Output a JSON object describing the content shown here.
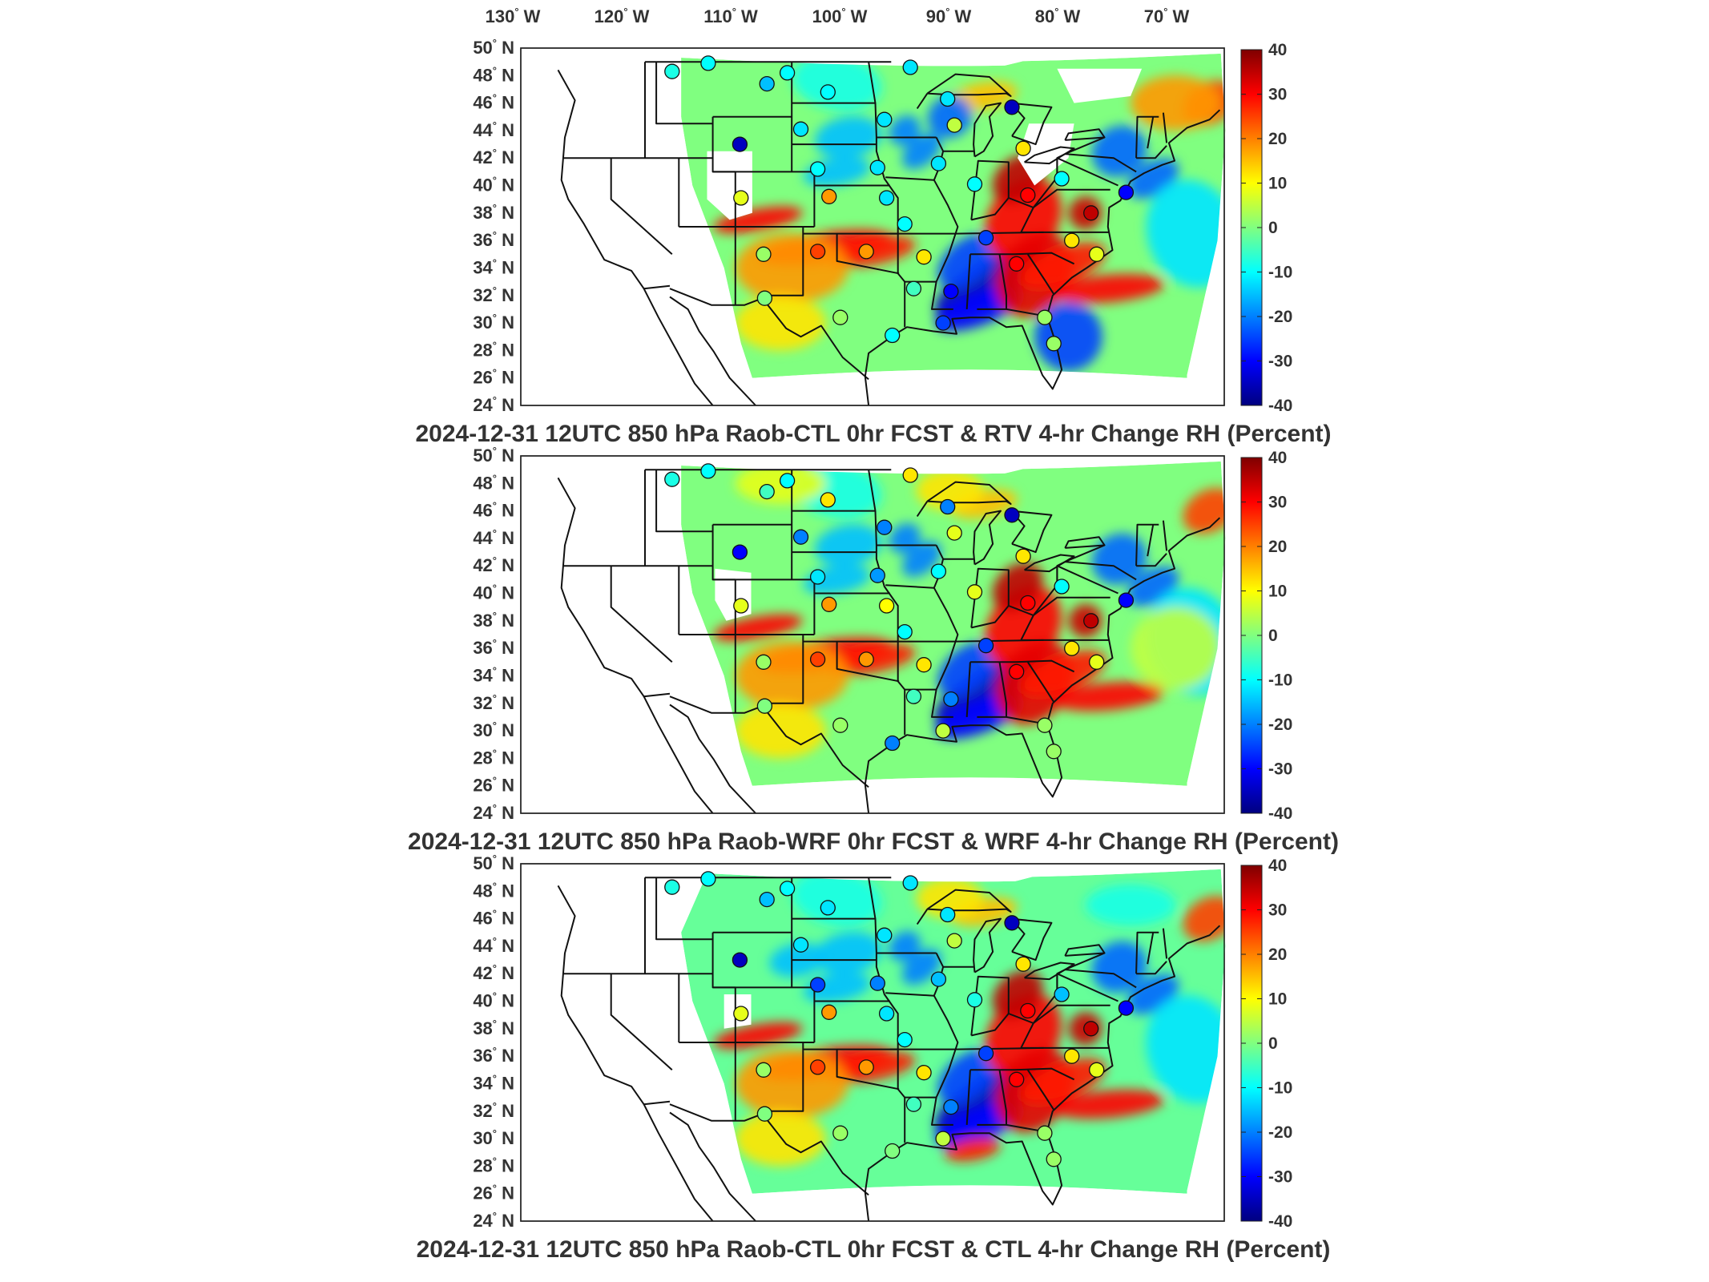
{
  "figure": {
    "lon_ticks": [
      "130",
      "120",
      "110",
      "100",
      "90",
      "80",
      "70"
    ],
    "lon_hemisphere": "W",
    "lat_ticks": [
      "50",
      "48",
      "46",
      "44",
      "42",
      "40",
      "38",
      "36",
      "34",
      "32",
      "30",
      "28",
      "26",
      "24"
    ],
    "lat_hemisphere": "N",
    "colorbar_ticks": [
      "40",
      "30",
      "20",
      "10",
      "0",
      "-10",
      "-20",
      "-30",
      "-40"
    ],
    "colormap": [
      "#00007f",
      "#0000ff",
      "#0080ff",
      "#00ffff",
      "#80ff80",
      "#ffff00",
      "#ff8000",
      "#ff0000",
      "#7f0000"
    ],
    "panels": [
      {
        "title": "2024-12-31 12UTC 850 hPa Raob-CTL 0hr FCST & RTV 4-hr Change RH (Percent)",
        "variant": 0
      },
      {
        "title": "2024-12-31 12UTC 850 hPa Raob-WRF 0hr FCST & WRF 4-hr Change RH (Percent)",
        "variant": 1
      },
      {
        "title": "2024-12-31 12UTC 850 hPa Raob-CTL 0hr FCST & CTL 4-hr Change RH (Percent)",
        "variant": 2
      }
    ],
    "raob_stations": [
      {
        "lon": -114.6,
        "lat": 48.3,
        "values": [
          -8,
          -8,
          -8
        ]
      },
      {
        "lon": -111.4,
        "lat": 48.9,
        "values": [
          -10,
          -10,
          -10
        ]
      },
      {
        "lon": -104.4,
        "lat": 48.2,
        "values": [
          -10,
          -10,
          -10
        ]
      },
      {
        "lon": -106.2,
        "lat": 47.4,
        "values": [
          -15,
          -5,
          -15
        ]
      },
      {
        "lon": -100.8,
        "lat": 46.8,
        "values": [
          -10,
          12,
          -12
        ]
      },
      {
        "lon": -93.5,
        "lat": 48.6,
        "values": [
          -12,
          12,
          -12
        ]
      },
      {
        "lon": -90.2,
        "lat": 46.3,
        "values": [
          -12,
          -20,
          -12
        ]
      },
      {
        "lon": -84.5,
        "lat": 45.7,
        "values": [
          -35,
          -35,
          -35
        ]
      },
      {
        "lon": -108.6,
        "lat": 43.0,
        "values": [
          -35,
          -30,
          -35
        ]
      },
      {
        "lon": -103.2,
        "lat": 44.1,
        "values": [
          -12,
          -20,
          -12
        ]
      },
      {
        "lon": -95.8,
        "lat": 44.8,
        "values": [
          -12,
          -20,
          -12
        ]
      },
      {
        "lon": -89.6,
        "lat": 44.4,
        "values": [
          5,
          8,
          5
        ]
      },
      {
        "lon": -83.5,
        "lat": 42.7,
        "values": [
          12,
          12,
          12
        ]
      },
      {
        "lon": -101.7,
        "lat": 41.2,
        "values": [
          -10,
          -12,
          -25
        ]
      },
      {
        "lon": -96.4,
        "lat": 41.3,
        "values": [
          -12,
          -18,
          -20
        ]
      },
      {
        "lon": -91.0,
        "lat": 41.6,
        "values": [
          -12,
          -10,
          -15
        ]
      },
      {
        "lon": -87.8,
        "lat": 40.1,
        "values": [
          -10,
          8,
          -8
        ]
      },
      {
        "lon": -83.1,
        "lat": 39.3,
        "values": [
          30,
          30,
          30
        ]
      },
      {
        "lon": -80.1,
        "lat": 40.5,
        "values": [
          -10,
          -10,
          -15
        ]
      },
      {
        "lon": -77.5,
        "lat": 38.0,
        "values": [
          35,
          35,
          35
        ]
      },
      {
        "lon": -108.5,
        "lat": 39.1,
        "values": [
          8,
          8,
          8
        ]
      },
      {
        "lon": -100.7,
        "lat": 39.2,
        "values": [
          18,
          18,
          18
        ]
      },
      {
        "lon": -95.6,
        "lat": 39.1,
        "values": [
          -12,
          10,
          -12
        ]
      },
      {
        "lon": -94.0,
        "lat": 37.2,
        "values": [
          -10,
          -10,
          -10
        ]
      },
      {
        "lon": -106.5,
        "lat": 35.0,
        "values": [
          2,
          2,
          2
        ]
      },
      {
        "lon": -101.7,
        "lat": 35.2,
        "values": [
          25,
          25,
          25
        ]
      },
      {
        "lon": -97.4,
        "lat": 35.2,
        "values": [
          18,
          18,
          18
        ]
      },
      {
        "lon": -92.3,
        "lat": 34.8,
        "values": [
          12,
          12,
          12
        ]
      },
      {
        "lon": -86.8,
        "lat": 36.2,
        "values": [
          -25,
          -25,
          -25
        ]
      },
      {
        "lon": -84.1,
        "lat": 34.3,
        "values": [
          30,
          30,
          30
        ]
      },
      {
        "lon": -79.2,
        "lat": 36.0,
        "values": [
          12,
          12,
          12
        ]
      },
      {
        "lon": -77.0,
        "lat": 35.0,
        "values": [
          8,
          8,
          8
        ]
      },
      {
        "lon": -89.9,
        "lat": 32.3,
        "values": [
          -30,
          -20,
          -20
        ]
      },
      {
        "lon": -90.6,
        "lat": 30.0,
        "values": [
          -25,
          5,
          5
        ]
      },
      {
        "lon": -93.2,
        "lat": 32.5,
        "values": [
          -5,
          -5,
          -5
        ]
      },
      {
        "lon": -106.4,
        "lat": 31.8,
        "values": [
          0,
          0,
          0
        ]
      },
      {
        "lon": -99.7,
        "lat": 30.4,
        "values": [
          2,
          2,
          2
        ]
      },
      {
        "lon": -95.1,
        "lat": 29.1,
        "values": [
          -10,
          -20,
          0
        ]
      },
      {
        "lon": -81.6,
        "lat": 30.4,
        "values": [
          2,
          2,
          2
        ]
      },
      {
        "lon": -80.8,
        "lat": 28.5,
        "values": [
          2,
          2,
          2
        ]
      },
      {
        "lon": -74.4,
        "lat": 39.5,
        "values": [
          -30,
          -30,
          -30
        ]
      }
    ]
  }
}
